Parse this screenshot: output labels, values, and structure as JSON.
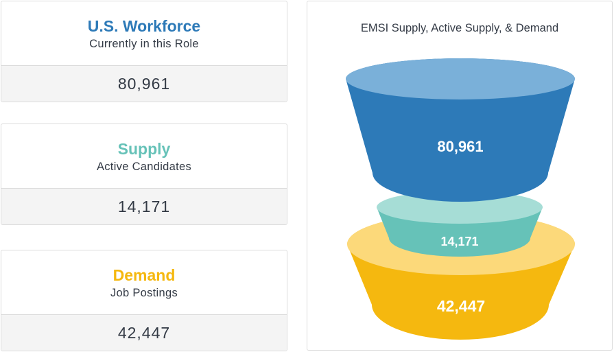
{
  "cards": {
    "workforce": {
      "title": "U.S. Workforce",
      "subtitle": "Currently in this Role",
      "value": "80,961"
    },
    "supply": {
      "title": "Supply",
      "subtitle": "Active Candidates",
      "value": "14,171"
    },
    "demand": {
      "title": "Demand",
      "subtitle": "Job Postings",
      "value": "42,447"
    }
  },
  "colors": {
    "workforce": "#2d7ab8",
    "workforce_top": "#7ab0d9",
    "supply": "#66c2b8",
    "supply_top": "#a6ddd6",
    "demand": "#f5b80f",
    "demand_top": "#fcd97a"
  },
  "chart_data": {
    "type": "funnel",
    "title": "EMSI Supply, Active Supply, & Demand",
    "series": [
      {
        "name": "U.S. Workforce",
        "value": 80961,
        "label": "80,961"
      },
      {
        "name": "Supply",
        "value": 14171,
        "label": "14,171"
      },
      {
        "name": "Demand",
        "value": 42447,
        "label": "42,447"
      }
    ]
  }
}
